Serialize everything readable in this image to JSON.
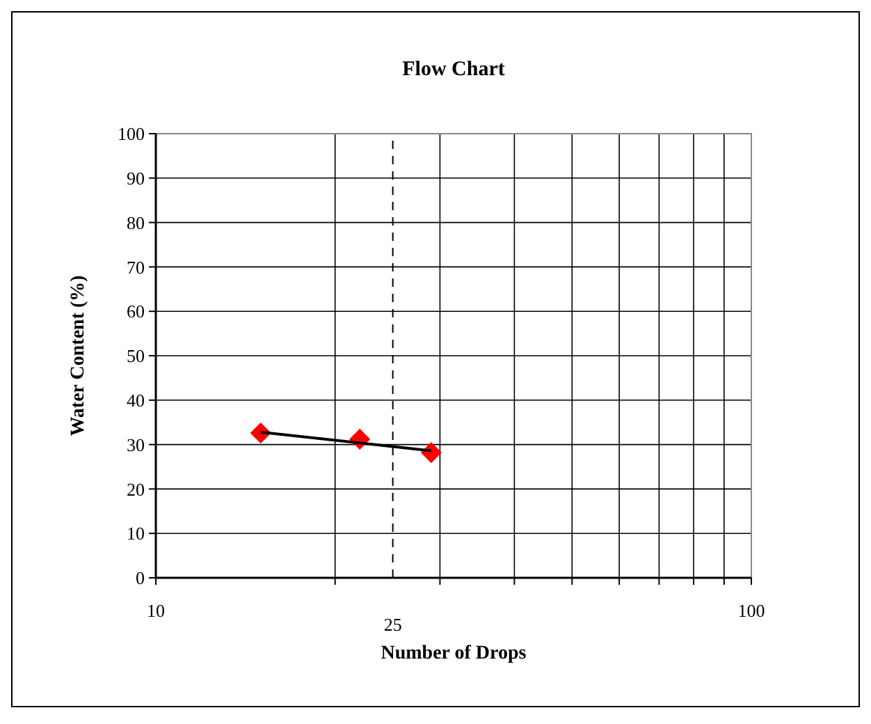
{
  "chart_data": {
    "type": "scatter",
    "title": "Flow Chart",
    "xlabel": "Number of Drops",
    "ylabel": "Water Content (%)",
    "log": "x",
    "xlim": [
      10,
      100
    ],
    "ylim": [
      0,
      100
    ],
    "xticks": [
      10,
      {
        "value": 20,
        "label": null
      },
      {
        "value": 30,
        "label": null
      },
      {
        "value": 40,
        "label": null
      },
      {
        "value": 50,
        "label": null
      },
      {
        "value": 60,
        "label": null
      },
      {
        "value": 70,
        "label": null
      },
      {
        "value": 80,
        "label": null
      },
      {
        "value": 90,
        "label": null
      },
      100
    ],
    "yticks": [
      0,
      10,
      20,
      30,
      40,
      50,
      60,
      70,
      80,
      90,
      100
    ],
    "grid": true,
    "ref_lines": [
      {
        "axis": "x",
        "value": 25,
        "label": "25",
        "color": "#000000",
        "line_style": "dashed"
      }
    ],
    "series": [
      {
        "x": [
          15,
          22,
          29
        ],
        "values": [
          32.6,
          31.2,
          28.2
        ],
        "color": "#ff0000",
        "marker": "diamond"
      },
      {
        "type": "line",
        "x": [
          15,
          29
        ],
        "values": [
          32.8,
          28.6
        ],
        "color": "#000000",
        "marker": "none",
        "line_style": "solid"
      }
    ]
  }
}
